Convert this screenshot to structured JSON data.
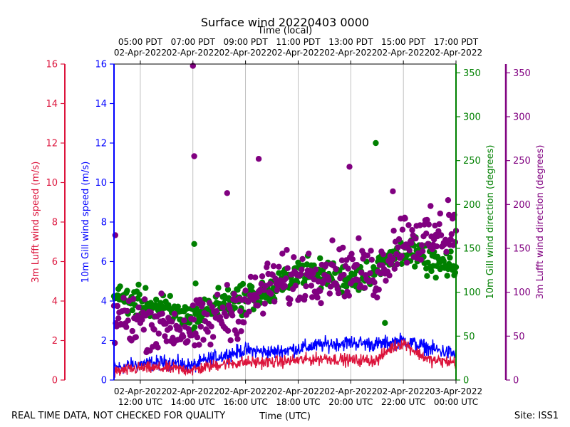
{
  "chart_data": {
    "type": "scatter",
    "title": "Surface wind 20220403 0000",
    "top_axis_label": "Time (local)",
    "xlabel": "Time (UTC)",
    "footer_left": "REAL TIME DATA, NOT CHECKED FOR QUALITY",
    "footer_right": "Site: ISS1",
    "x_range_hours_utc": [
      11.0,
      24.0
    ],
    "x_ticks_hours_utc": [
      12,
      14,
      16,
      18,
      20,
      22,
      24
    ],
    "bottom_tick_labels": [
      [
        "02-Apr-2022",
        "12:00 UTC"
      ],
      [
        "02-Apr-2022",
        "14:00 UTC"
      ],
      [
        "02-Apr-2022",
        "16:00 UTC"
      ],
      [
        "02-Apr-2022",
        "18:00 UTC"
      ],
      [
        "02-Apr-2022",
        "20:00 UTC"
      ],
      [
        "02-Apr-2022",
        "22:00 UTC"
      ],
      [
        "03-Apr-2022",
        "00:00 UTC"
      ]
    ],
    "top_tick_labels": [
      [
        "05:00 PDT",
        "02-Apr-2022"
      ],
      [
        "07:00 PDT",
        "02-Apr-2022"
      ],
      [
        "09:00 PDT",
        "02-Apr-2022"
      ],
      [
        "11:00 PDT",
        "02-Apr-2022"
      ],
      [
        "13:00 PDT",
        "02-Apr-2022"
      ],
      [
        "15:00 PDT",
        "02-Apr-2022"
      ],
      [
        "17:00 PDT",
        "02-Apr-2022"
      ]
    ],
    "axes": {
      "lufft_speed": {
        "label": "3m Lufft wind speed (m/s)",
        "range": [
          0,
          16
        ],
        "ticks": [
          0,
          2,
          4,
          6,
          8,
          10,
          12,
          14,
          16
        ],
        "color": "#dc143c"
      },
      "gill_speed": {
        "label": "10m Gill wind speed (m/s)",
        "range": [
          0,
          16
        ],
        "ticks": [
          0,
          2,
          4,
          6,
          8,
          10,
          12,
          14,
          16
        ],
        "color": "#0000ff"
      },
      "gill_dir": {
        "label": "10m Gill wind direction (degrees)",
        "range": [
          0,
          360
        ],
        "ticks": [
          0,
          50,
          100,
          150,
          200,
          250,
          300,
          350
        ],
        "color": "#008000"
      },
      "lufft_dir": {
        "label": "3m Lufft wind direction (degrees)",
        "range": [
          0,
          360
        ],
        "ticks": [
          0,
          50,
          100,
          150,
          200,
          250,
          300,
          350
        ],
        "color": "#800080"
      }
    },
    "series": [
      {
        "name": "10m Gill wind speed",
        "axis": "gill_speed",
        "kind": "line",
        "color": "#0000ff",
        "anchors": [
          [
            11.0,
            0.6
          ],
          [
            12.0,
            0.8
          ],
          [
            13.0,
            0.9
          ],
          [
            14.0,
            0.7
          ],
          [
            14.5,
            1.0
          ],
          [
            15.0,
            1.2
          ],
          [
            16.0,
            1.5
          ],
          [
            17.0,
            1.4
          ],
          [
            18.0,
            1.6
          ],
          [
            19.0,
            1.8
          ],
          [
            20.0,
            1.9
          ],
          [
            21.0,
            1.8
          ],
          [
            22.0,
            2.0
          ],
          [
            23.0,
            1.6
          ],
          [
            24.0,
            1.3
          ]
        ],
        "noise": 0.55
      },
      {
        "name": "3m Lufft wind speed",
        "axis": "lufft_speed",
        "kind": "line",
        "color": "#dc143c",
        "anchors": [
          [
            11.0,
            0.4
          ],
          [
            12.0,
            0.6
          ],
          [
            13.0,
            0.6
          ],
          [
            14.0,
            0.5
          ],
          [
            15.0,
            0.8
          ],
          [
            16.0,
            0.9
          ],
          [
            17.0,
            0.9
          ],
          [
            18.0,
            1.0
          ],
          [
            19.0,
            1.1
          ],
          [
            20.0,
            1.0
          ],
          [
            21.0,
            1.0
          ],
          [
            21.5,
            1.6
          ],
          [
            22.0,
            1.9
          ],
          [
            22.5,
            1.4
          ],
          [
            23.0,
            1.0
          ],
          [
            24.0,
            0.9
          ]
        ],
        "noise": 0.45
      },
      {
        "name": "10m Gill wind direction",
        "axis": "gill_dir",
        "kind": "points",
        "color": "#008000",
        "anchors": [
          [
            11.0,
            95
          ],
          [
            12.0,
            88
          ],
          [
            13.0,
            80
          ],
          [
            14.0,
            70
          ],
          [
            15.0,
            88
          ],
          [
            16.0,
            95
          ],
          [
            17.0,
            100
          ],
          [
            18.0,
            125
          ],
          [
            19.0,
            120
          ],
          [
            20.0,
            115
          ],
          [
            21.0,
            125
          ],
          [
            22.0,
            150
          ],
          [
            23.0,
            135
          ],
          [
            24.0,
            125
          ]
        ],
        "noise": 14,
        "outliers": [
          [
            14.05,
            155
          ],
          [
            14.1,
            110
          ],
          [
            20.95,
            270
          ],
          [
            21.3,
            65
          ]
        ]
      },
      {
        "name": "3m Lufft wind direction",
        "axis": "lufft_dir",
        "kind": "points",
        "color": "#800080",
        "anchors": [
          [
            11.0,
            70
          ],
          [
            12.0,
            68
          ],
          [
            13.0,
            62
          ],
          [
            14.0,
            55
          ],
          [
            15.0,
            72
          ],
          [
            16.0,
            85
          ],
          [
            17.0,
            110
          ],
          [
            18.0,
            115
          ],
          [
            19.0,
            125
          ],
          [
            20.0,
            125
          ],
          [
            21.0,
            120
          ],
          [
            22.0,
            165
          ],
          [
            23.0,
            160
          ],
          [
            24.0,
            170
          ]
        ],
        "noise": 26,
        "outliers": [
          [
            14.0,
            358
          ],
          [
            14.05,
            255
          ],
          [
            16.5,
            252
          ],
          [
            15.3,
            213
          ],
          [
            19.95,
            243
          ],
          [
            21.6,
            215
          ],
          [
            22.05,
            185
          ],
          [
            23.7,
            205
          ],
          [
            11.05,
            165
          ]
        ]
      }
    ]
  }
}
